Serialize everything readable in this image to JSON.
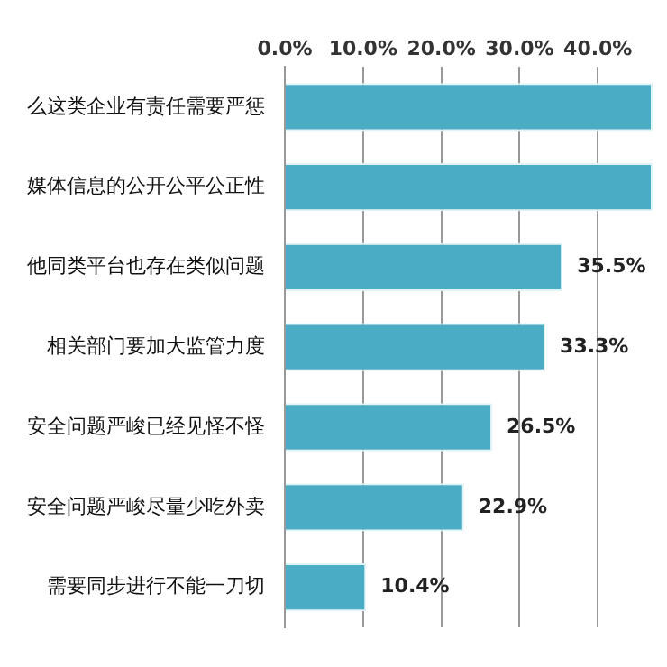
{
  "chart_data": {
    "type": "bar",
    "orientation": "horizontal",
    "categories": [
      "么这类企业有责任需要严惩",
      "媒体信息的公开公平公正性",
      "他同类平台也存在类似问题",
      "相关部门要加大监管力度",
      "安全问题严峻已经见怪不怪",
      "安全问题严峻尽量少吃外卖",
      "需要同步进行不能一刀切"
    ],
    "values": [
      47,
      47,
      35.5,
      33.3,
      26.5,
      22.9,
      10.4
    ],
    "value_labels": [
      null,
      null,
      "35.5%",
      "33.3%",
      "26.5%",
      "22.9%",
      "10.4%"
    ],
    "color": "#4bacc6",
    "xlim": [
      0,
      47
    ],
    "xticks": [
      {
        "value": 0,
        "label": "0.0%"
      },
      {
        "value": 10,
        "label": "10.0%"
      },
      {
        "value": 20,
        "label": "20.0%"
      },
      {
        "value": 30,
        "label": "30.0%"
      },
      {
        "value": 40,
        "label": "40.0%"
      }
    ],
    "grid": "x",
    "legend": false
  }
}
